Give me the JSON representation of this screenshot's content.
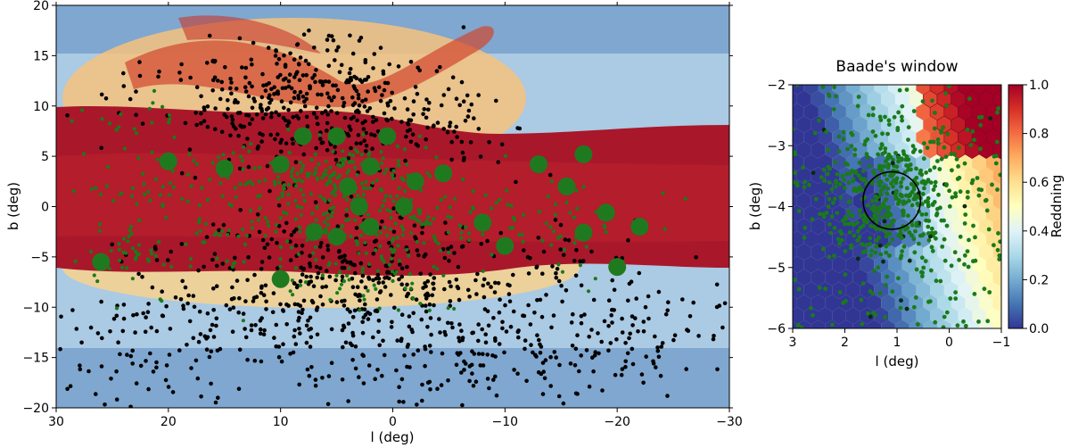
{
  "chart_data": [
    {
      "type": "scatter",
      "panel": "galactic-bulge-map",
      "title": "",
      "xlabel": "l (deg)",
      "ylabel": "b (deg)",
      "xlim": [
        30,
        -30
      ],
      "ylim": [
        -20,
        20
      ],
      "x_ticks": [
        30,
        20,
        10,
        0,
        -10,
        -20,
        -30
      ],
      "y_ticks": [
        -20,
        -15,
        -10,
        -5,
        0,
        5,
        10,
        15,
        20
      ],
      "x_tick_labels": [
        "30",
        "20",
        "10",
        "0",
        "−10",
        "−20",
        "−30"
      ],
      "y_tick_labels": [
        "−20",
        "−15",
        "−10",
        "−5",
        "0",
        "5",
        "10",
        "15",
        "20"
      ],
      "background": "reddening map (blue = low, dark red = high); dense reddening band along b≈0",
      "series": [
        {
          "color": "#000000",
          "clusters": [
            [
              10,
              10,
              180,
              4,
              3
            ],
            [
              3,
              10,
              140,
              3,
              3
            ],
            [
              -5,
              8,
              60,
              3,
              3
            ],
            [
              8,
              -8,
              160,
              5,
              4
            ],
            [
              0,
              -8,
              160,
              5,
              4
            ],
            [
              -8,
              -12,
              110,
              5,
              4
            ],
            [
              -15,
              -14,
              100,
              7,
              3
            ],
            [
              15,
              -12,
              80,
              6,
              4
            ],
            [
              20,
              -12,
              60,
              5,
              5
            ],
            [
              -22,
              -14,
              40,
              5,
              3
            ],
            [
              -20,
              -8,
              30,
              4,
              3
            ],
            [
              10,
              13,
              40,
              4,
              3
            ],
            [
              18,
              10,
              40,
              4,
              3
            ],
            [
              26,
              -15,
              30,
              4,
              4
            ],
            [
              -12,
              -5,
              30,
              5,
              3
            ],
            [
              6,
              -16,
              30,
              5,
              3
            ]
          ]
        },
        {
          "color": "#1a7a1a",
          "clusters": [
            [
              5,
              3,
              180,
              5,
              1.6
            ],
            [
              0,
              -2,
              120,
              6,
              1.5
            ],
            [
              18,
              2,
              70,
              6,
              2
            ],
            [
              12,
              -4,
              50,
              6,
              2
            ],
            [
              -10,
              0,
              40,
              8,
              1.5
            ],
            [
              24,
              -5,
              35,
              2,
              2
            ],
            [
              2,
              -7,
              60,
              4,
              2
            ],
            [
              25,
              9,
              25,
              4,
              2
            ],
            [
              -15,
              -3,
              20,
              4,
              2
            ]
          ]
        }
      ],
      "large_markers": [
        [
          -17,
          5.2
        ],
        [
          -20,
          -6
        ],
        [
          -19,
          -0.6
        ],
        [
          -10,
          -3.9
        ],
        [
          -13,
          4.2
        ],
        [
          -17,
          -2.6
        ],
        [
          -15.5,
          2
        ],
        [
          -4.5,
          3.3
        ],
        [
          -8,
          -1.6
        ],
        [
          -22,
          -2
        ],
        [
          2,
          -2
        ],
        [
          5,
          -3
        ],
        [
          7,
          -2.5
        ],
        [
          10,
          -7.2
        ],
        [
          10,
          4.2
        ],
        [
          15,
          3.8
        ],
        [
          0.5,
          7
        ],
        [
          5,
          7
        ],
        [
          8,
          7
        ],
        [
          2,
          4
        ],
        [
          4,
          2
        ],
        [
          20,
          4.5
        ],
        [
          26,
          -5.5
        ],
        [
          -2,
          2.5
        ],
        [
          3,
          0
        ],
        [
          -1,
          0
        ]
      ]
    },
    {
      "type": "heatmap",
      "panel": "baades-window",
      "title": "Baade's window",
      "xlabel": "l  (deg)",
      "ylabel": "b  (deg)",
      "xlim": [
        3,
        -1
      ],
      "ylim": [
        -6,
        -2
      ],
      "x_ticks": [
        3,
        2,
        1,
        0,
        -1
      ],
      "y_ticks": [
        -6,
        -5,
        -4,
        -3,
        -2
      ],
      "x_tick_labels": [
        "3",
        "2",
        "1",
        "0",
        "−1"
      ],
      "y_tick_labels": [
        "−6",
        "−5",
        "−4",
        "−3",
        "−2"
      ],
      "colorbar": {
        "label": "Reddning",
        "range": [
          0.0,
          1.0
        ],
        "ticks": [
          0.0,
          0.2,
          0.4,
          0.6,
          0.8,
          1.0
        ],
        "tick_labels": [
          "0.0",
          "0.2",
          "0.4",
          "0.6",
          "0.8",
          "1.0"
        ]
      },
      "circle": {
        "l": 1.1,
        "b": -3.9,
        "radius_deg": 0.55
      },
      "points": {
        "color": "#1a7a1a",
        "count": 620,
        "center": [
          1.1,
          -3.9
        ]
      }
    }
  ]
}
